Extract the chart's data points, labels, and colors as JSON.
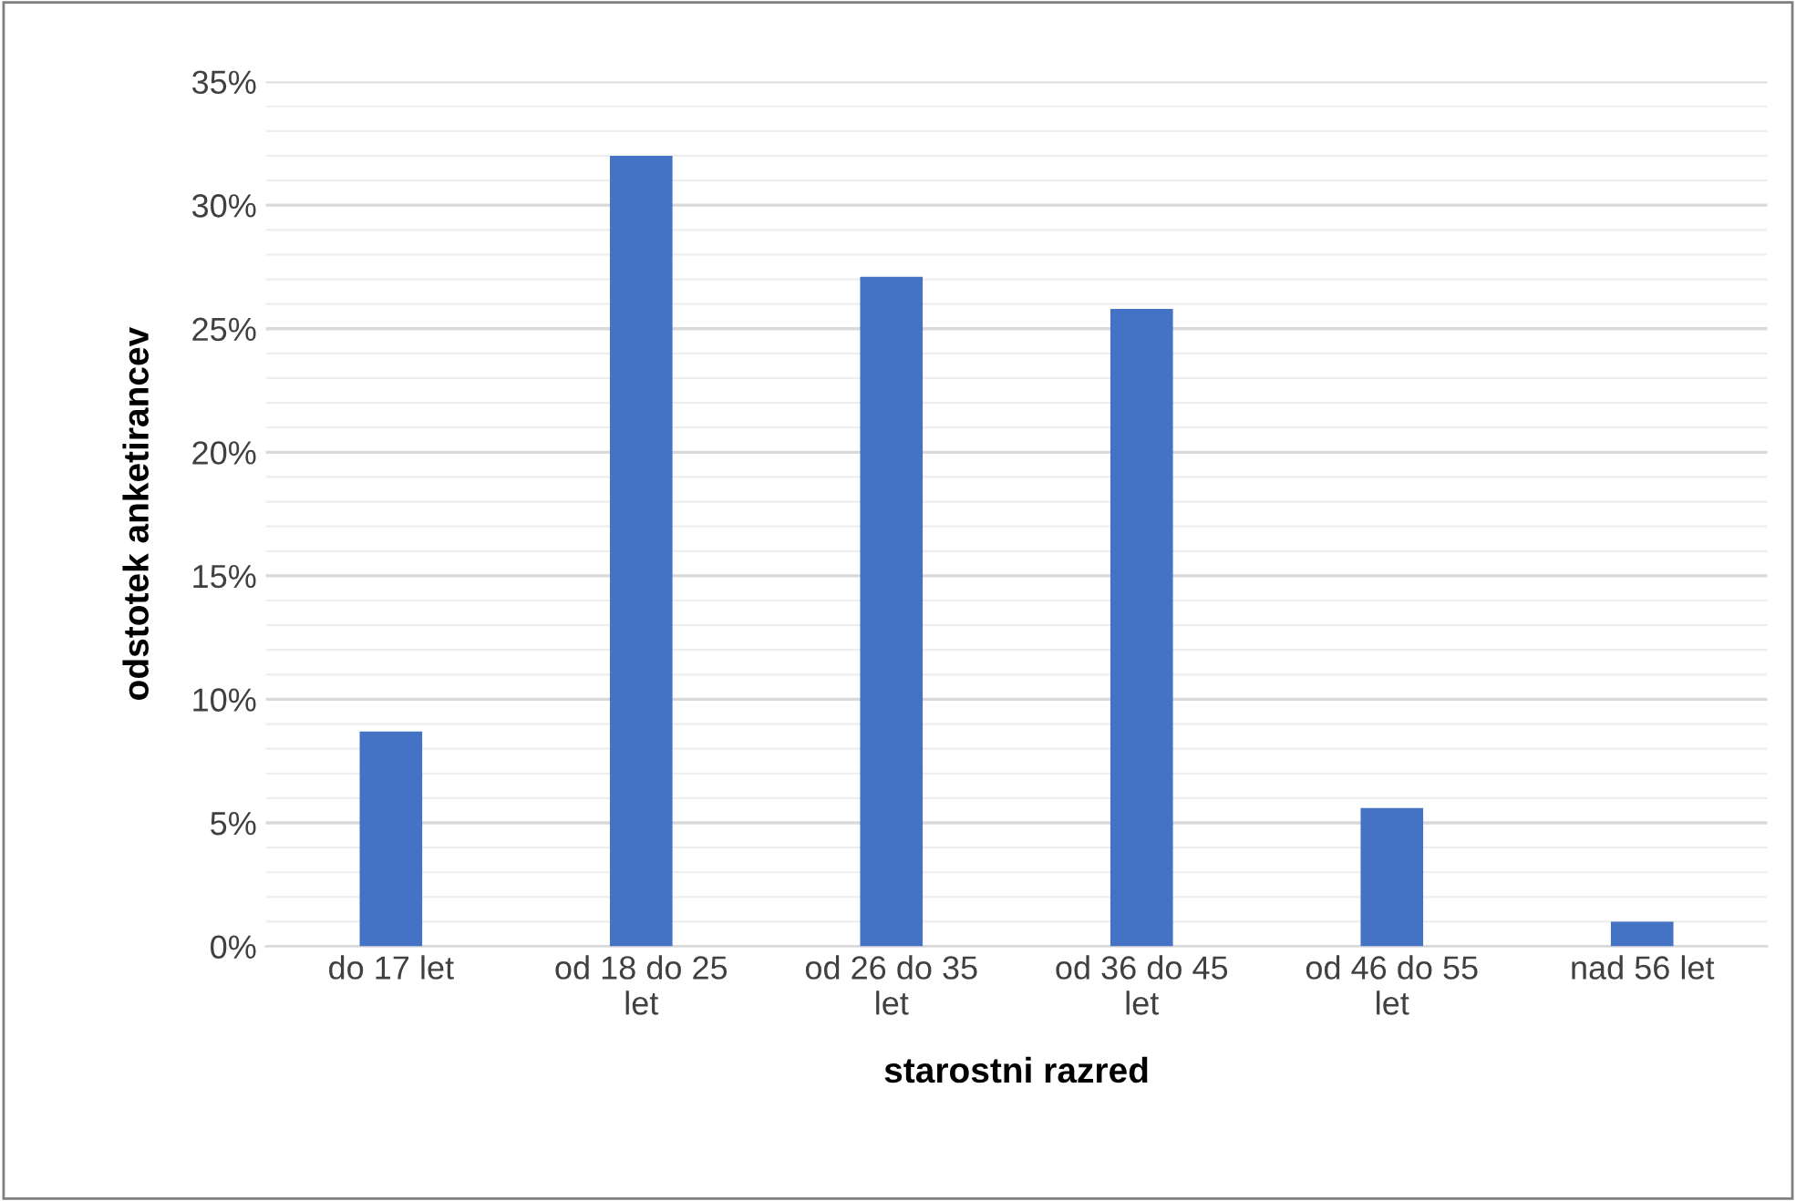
{
  "chart_data": {
    "type": "bar",
    "xlabel": "starostni razred",
    "ylabel": "odstotek anketirancev",
    "categories": [
      "do 17 let",
      "od 18 do 25\nlet",
      "od 26 do 35\nlet",
      "od 36 do 45\nlet",
      "od 46 do 55\nlet",
      "nad 56 let"
    ],
    "values": [
      8.7,
      32,
      27.1,
      25.8,
      5.6,
      1.0
    ],
    "color": "#4472c4",
    "ylim": [
      0,
      35
    ],
    "yticks": [
      {
        "value": 0,
        "label": "0%"
      },
      {
        "value": 1,
        "label": null
      },
      {
        "value": 2,
        "label": null
      },
      {
        "value": 3,
        "label": null
      },
      {
        "value": 4,
        "label": null
      },
      {
        "value": 5,
        "label": "5%"
      },
      {
        "value": 6,
        "label": null
      },
      {
        "value": 7,
        "label": null
      },
      {
        "value": 8,
        "label": null
      },
      {
        "value": 9,
        "label": null
      },
      {
        "value": 10,
        "label": "10%"
      },
      {
        "value": 11,
        "label": null
      },
      {
        "value": 12,
        "label": null
      },
      {
        "value": 13,
        "label": null
      },
      {
        "value": 14,
        "label": null
      },
      {
        "value": 15,
        "label": "15%"
      },
      {
        "value": 16,
        "label": null
      },
      {
        "value": 17,
        "label": null
      },
      {
        "value": 18,
        "label": null
      },
      {
        "value": 19,
        "label": null
      },
      {
        "value": 20,
        "label": "20%"
      },
      {
        "value": 21,
        "label": null
      },
      {
        "value": 22,
        "label": null
      },
      {
        "value": 23,
        "label": null
      },
      {
        "value": 24,
        "label": null
      },
      {
        "value": 25,
        "label": "25%"
      },
      {
        "value": 26,
        "label": null
      },
      {
        "value": 27,
        "label": null
      },
      {
        "value": 28,
        "label": null
      },
      {
        "value": 29,
        "label": null
      },
      {
        "value": 30,
        "label": "30%"
      },
      {
        "value": 31,
        "label": null
      },
      {
        "value": 32,
        "label": null
      },
      {
        "value": 33,
        "label": null
      },
      {
        "value": 34,
        "label": null
      },
      {
        "value": 35,
        "label": "35%"
      }
    ],
    "grid": "y"
  }
}
